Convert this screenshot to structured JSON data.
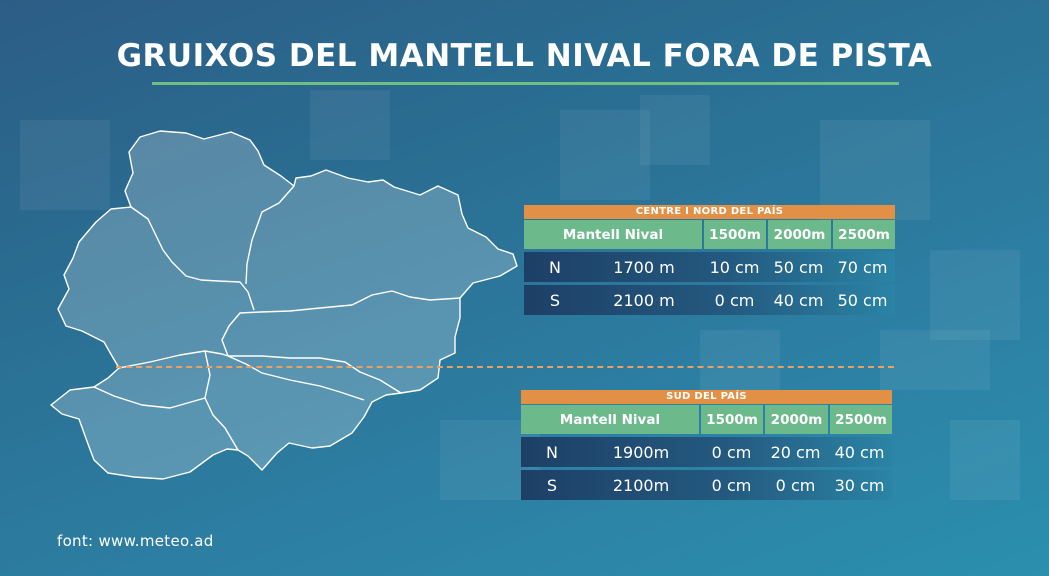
{
  "title": "GRUIXOS DEL MANTELL NIVAL FORA DE PISTA",
  "source": "font: www.meteo.ad",
  "colors": {
    "accent_orange": "#e29045",
    "header_green": "#6cb98c",
    "title_rule": "#6fbf84",
    "dashed_line": "#e8a064"
  },
  "tables": [
    {
      "region": "CENTRE I NORD DEL PAÍS",
      "columns": [
        "Mantell Nival",
        "1500m",
        "2000m",
        "2500m"
      ],
      "rows": [
        {
          "orientation": "N",
          "altitude": "1700 m",
          "v1500": "10 cm",
          "v2000": "50 cm",
          "v2500": "70 cm"
        },
        {
          "orientation": "S",
          "altitude": "2100 m",
          "v1500": "0 cm",
          "v2000": "40 cm",
          "v2500": "50 cm"
        }
      ]
    },
    {
      "region": "SUD DEL PAÍS",
      "columns": [
        "Mantell Nival",
        "1500m",
        "2000m",
        "2500m"
      ],
      "rows": [
        {
          "orientation": "N",
          "altitude": "1900m",
          "v1500": "0 cm",
          "v2000": "20 cm",
          "v2500": "40 cm"
        },
        {
          "orientation": "S",
          "altitude": "2100m",
          "v1500": "0 cm",
          "v2000": "0 cm",
          "v2500": "30 cm"
        }
      ]
    }
  ]
}
